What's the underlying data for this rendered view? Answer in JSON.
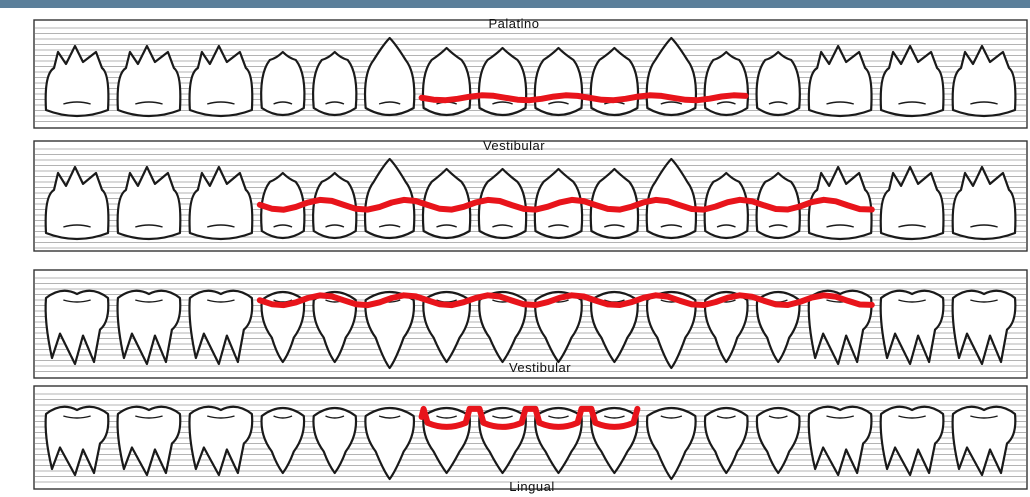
{
  "colors": {
    "header_rule": "#5b7f9a",
    "margin_line": "#e8141b",
    "outline": "#1a1a1a"
  },
  "panels": [
    {
      "label": "Palatino",
      "arch": "upper",
      "label_position": "top",
      "teeth": [
        "molar",
        "molar",
        "molar",
        "premolar",
        "premolar",
        "canine",
        "incisor",
        "incisor",
        "incisor",
        "incisor",
        "canine",
        "premolar",
        "premolar",
        "molar",
        "molar",
        "molar"
      ],
      "gum_line": {
        "from_tooth": 6,
        "to_tooth": 11,
        "level": 0.72,
        "wave": "gentle"
      }
    },
    {
      "label": "Vestibular",
      "arch": "upper",
      "label_position": "top",
      "teeth": [
        "molar",
        "molar",
        "molar",
        "premolar",
        "premolar",
        "canine",
        "incisor",
        "incisor",
        "incisor",
        "incisor",
        "canine",
        "premolar",
        "premolar",
        "molar",
        "molar",
        "molar"
      ],
      "gum_line": {
        "from_tooth": 3,
        "to_tooth": 13,
        "level": 0.58,
        "wave": "strong"
      }
    },
    {
      "label": "Vestibular",
      "arch": "lower",
      "label_position": "bottom",
      "teeth": [
        "molar",
        "molar",
        "molar",
        "premolar",
        "premolar",
        "canine",
        "incisor",
        "incisor",
        "incisor",
        "incisor",
        "canine",
        "premolar",
        "premolar",
        "molar",
        "molar",
        "molar"
      ],
      "gum_line": {
        "from_tooth": 3,
        "to_tooth": 13,
        "level": 0.28,
        "wave": "strong"
      }
    },
    {
      "label": "Lingual",
      "arch": "lower",
      "label_position": "bottom",
      "teeth": [
        "molar",
        "molar",
        "molar",
        "premolar",
        "premolar",
        "canine",
        "incisor",
        "incisor",
        "incisor",
        "incisor",
        "canine",
        "premolar",
        "premolar",
        "molar",
        "molar",
        "molar"
      ],
      "gum_line": {
        "from_tooth": 6,
        "to_tooth": 9,
        "level": 0.3,
        "wave": "scallop"
      }
    }
  ]
}
